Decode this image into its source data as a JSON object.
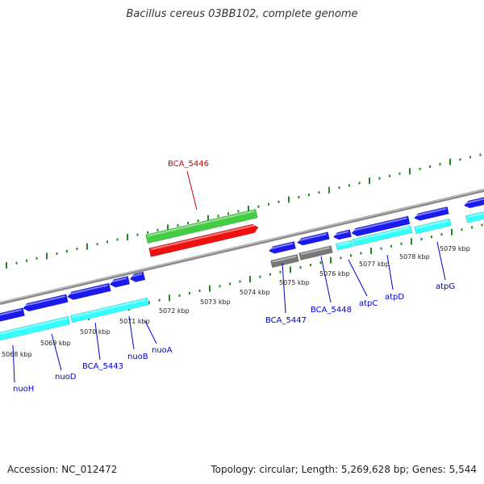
{
  "title": "Bacillus cereus 03BB102, complete genome",
  "footer": {
    "accession": "Accession: NC_012472",
    "info": "Topology: circular; Length: 5,269,628 bp; Genes: 5,544"
  },
  "colors": {
    "forward_strand": "#1a1aee",
    "forward_strand_dark": "#0000aa",
    "cds_cyan": "#33ffff",
    "highlight_green": "#44cc44",
    "highlight_red": "#ee1111",
    "pseudo_gray": "#777777",
    "backbone": "#999999",
    "ticks": "#228822",
    "label_blue": "#0000cc",
    "label_red": "#cc0000"
  },
  "ruler_labels": [
    "5068 kbp",
    "5069 kbp",
    "5070 kbp",
    "5071 kbp",
    "5072 kbp",
    "5073 kbp",
    "5074 kbp",
    "5075 kbp",
    "5076 kbp",
    "5077 kbp",
    "5078 kbp",
    "5079 kbp"
  ],
  "gene_labels": {
    "nuoH": "nuoH",
    "nuoD": "nuoD",
    "bca5443": "BCA_5443",
    "nuoB": "nuoB",
    "nuoA": "nuoA",
    "bca5446": "BCA_5446",
    "bca5447": "BCA_5447",
    "bca5448": "BCA_5448",
    "atpC": "atpC",
    "atpD": "atpD",
    "atpG": "atpG"
  }
}
